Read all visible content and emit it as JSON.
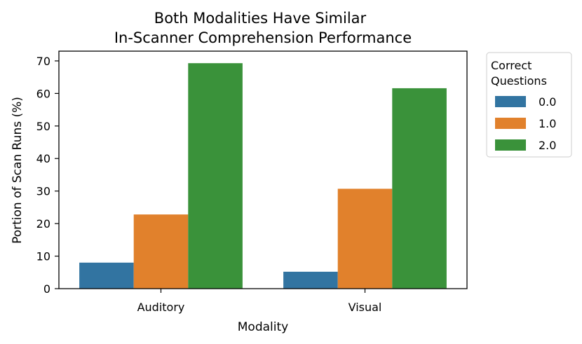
{
  "chart_data": {
    "type": "bar",
    "title_lines": [
      "Both Modalities Have Similar",
      "In-Scanner Comprehension Performance"
    ],
    "xlabel": "Modality",
    "ylabel": "Portion of Scan Runs (%)",
    "categories": [
      "Auditory",
      "Visual"
    ],
    "ylim": [
      0,
      73
    ],
    "yticks": [
      0,
      10,
      20,
      30,
      40,
      50,
      60,
      70
    ],
    "legend": {
      "title_lines": [
        "Correct",
        "Questions"
      ],
      "placement": "outside-top-right"
    },
    "series": [
      {
        "name": "0.0",
        "color": "#3274a1",
        "values": [
          8.0,
          5.2
        ]
      },
      {
        "name": "1.0",
        "color": "#e1812c",
        "values": [
          22.8,
          30.7
        ]
      },
      {
        "name": "2.0",
        "color": "#3a923a",
        "values": [
          69.3,
          61.6
        ]
      }
    ],
    "grid": false
  }
}
